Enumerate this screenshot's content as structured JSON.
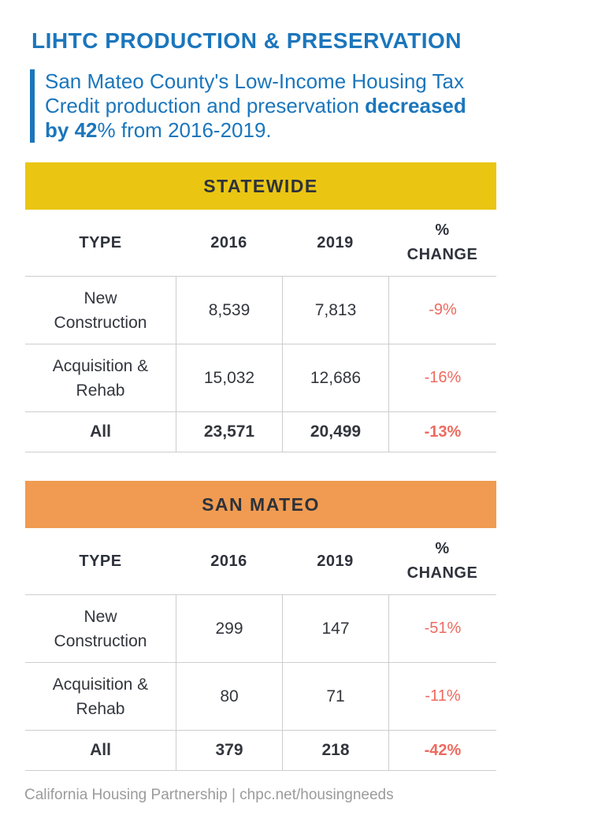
{
  "header": {
    "title": "LIHTC PRODUCTION & PRESERVATION",
    "subtitle": {
      "normal_start": "San Mateo County's Low-Income Housing Tax Credit production and preservation ",
      "bold": "decreased by 42",
      "normal_end": "% from 2016-2019."
    }
  },
  "colors": {
    "accent_blue": "#1B76BC",
    "statewide_yellow": "#EAC613",
    "san_mateo_orange": "#F09B51",
    "negative_change_red": "#ED6A5F",
    "heading_dark": "#2E323B",
    "divider_gray": "#CDCDCD",
    "footer_gray": "#9B9B9B"
  },
  "tables": [
    {
      "title": "STATEWIDE",
      "headers": [
        "TYPE",
        "2016",
        "2019",
        "% CHANGE"
      ],
      "rows": [
        {
          "type": "New Construction",
          "v2016": "8,539",
          "v2019": "7,813",
          "change": "-9%"
        },
        {
          "type": "Acquisition & Rehab",
          "v2016": "15,032",
          "v2019": "12,686",
          "change": "-16%"
        },
        {
          "type": "All",
          "v2016": "23,571",
          "v2019": "20,499",
          "change": "-13%"
        }
      ]
    },
    {
      "title": "SAN MATEO",
      "headers": [
        "TYPE",
        "2016",
        "2019",
        "% CHANGE"
      ],
      "rows": [
        {
          "type": "New Construction",
          "v2016": "299",
          "v2019": "147",
          "change": "-51%"
        },
        {
          "type": "Acquisition & Rehab",
          "v2016": "80",
          "v2019": "71",
          "change": "-11%"
        },
        {
          "type": "All",
          "v2016": "379",
          "v2019": "218",
          "change": "-42%"
        }
      ]
    }
  ],
  "footer": {
    "credit": "California Housing Partnership | chpc.net/housingneeds"
  },
  "chart_data": [
    {
      "type": "table",
      "title": "STATEWIDE",
      "columns": [
        "TYPE",
        "2016",
        "2019",
        "% CHANGE"
      ],
      "rows": [
        [
          "New Construction",
          8539,
          7813,
          "-9%"
        ],
        [
          "Acquisition & Rehab",
          15032,
          12686,
          "-16%"
        ],
        [
          "All",
          23571,
          20499,
          "-13%"
        ]
      ]
    },
    {
      "type": "table",
      "title": "SAN MATEO",
      "columns": [
        "TYPE",
        "2016",
        "2019",
        "% CHANGE"
      ],
      "rows": [
        [
          "New Construction",
          299,
          147,
          "-51%"
        ],
        [
          "Acquisition & Rehab",
          80,
          71,
          "-11%"
        ],
        [
          "All",
          379,
          218,
          "-42%"
        ]
      ]
    }
  ]
}
